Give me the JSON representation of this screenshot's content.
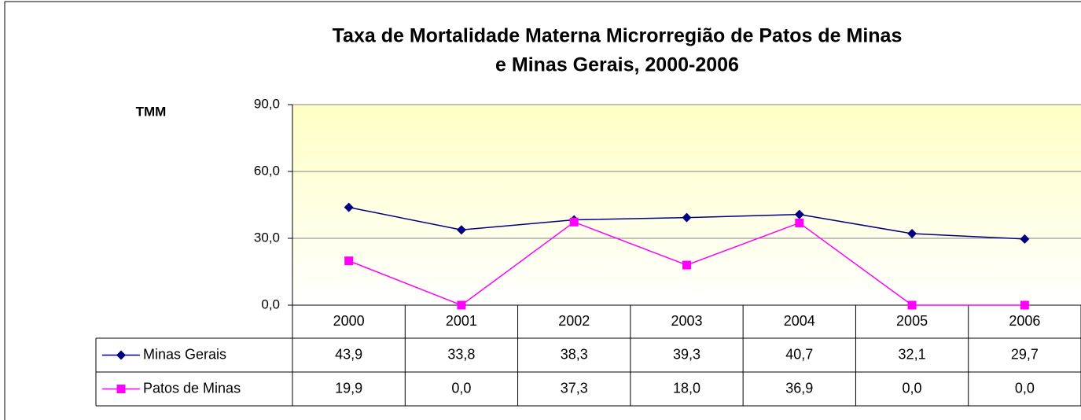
{
  "chart_data": {
    "type": "line",
    "title": [
      "Taxa de Mortalidade Materna   Microrregião de    Patos de Minas",
      "e  Minas Gerais, 2000-2006"
    ],
    "y_label": "TMM",
    "categories": [
      "2000",
      "2001",
      "2002",
      "2003",
      "2004",
      "2005",
      "2006"
    ],
    "series": [
      {
        "name": "Minas Gerais",
        "color": "#000080",
        "marker": "diamond",
        "values": [
          43.9,
          33.8,
          38.3,
          39.3,
          40.7,
          32.1,
          29.7
        ],
        "value_labels": [
          "43,9",
          "33,8",
          "38,3",
          "39,3",
          "40,7",
          "32,1",
          "29,7"
        ]
      },
      {
        "name": "Patos de Minas",
        "color": "#ff00ff",
        "marker": "square",
        "values": [
          19.9,
          0.0,
          37.3,
          18.0,
          36.9,
          0.0,
          0.0
        ],
        "value_labels": [
          "19,9",
          "0,0",
          "37,3",
          "18,0",
          "36,9",
          "0,0",
          "0,0"
        ]
      }
    ],
    "ylim": [
      0,
      90
    ],
    "yticks": [
      {
        "value": 0,
        "label": "0,0"
      },
      {
        "value": 30,
        "label": "30,0"
      },
      {
        "value": 60,
        "label": "60,0"
      },
      {
        "value": 90,
        "label": "90,0"
      }
    ],
    "grid": true
  }
}
